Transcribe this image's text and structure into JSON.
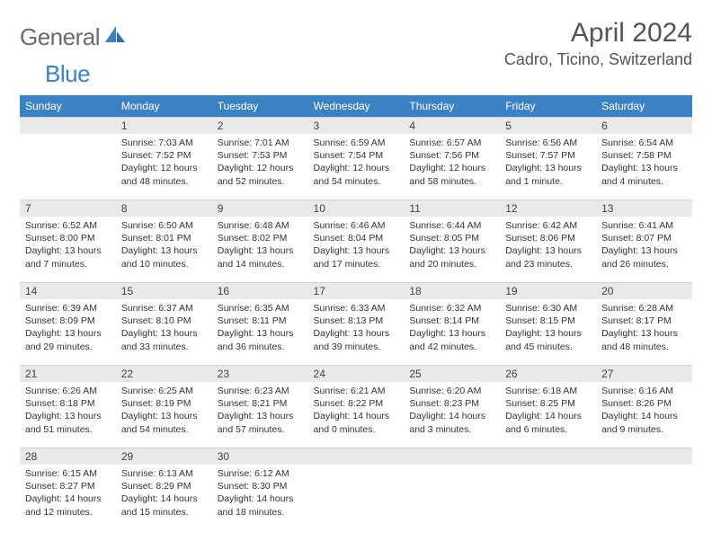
{
  "logo": {
    "part1": "General",
    "part2": "Blue"
  },
  "header": {
    "title": "April 2024",
    "location": "Cadro, Ticino, Switzerland"
  },
  "colors": {
    "accent": "#3b82c4",
    "grayBg": "#e9e9e9",
    "text": "#333333",
    "headerText": "#555555"
  },
  "dayHeaders": [
    "Sunday",
    "Monday",
    "Tuesday",
    "Wednesday",
    "Thursday",
    "Friday",
    "Saturday"
  ],
  "weeks": [
    [
      null,
      {
        "d": "1",
        "sr": "7:03 AM",
        "ss": "7:52 PM",
        "dl": "12 hours and 48 minutes."
      },
      {
        "d": "2",
        "sr": "7:01 AM",
        "ss": "7:53 PM",
        "dl": "12 hours and 52 minutes."
      },
      {
        "d": "3",
        "sr": "6:59 AM",
        "ss": "7:54 PM",
        "dl": "12 hours and 54 minutes."
      },
      {
        "d": "4",
        "sr": "6:57 AM",
        "ss": "7:56 PM",
        "dl": "12 hours and 58 minutes."
      },
      {
        "d": "5",
        "sr": "6:56 AM",
        "ss": "7:57 PM",
        "dl": "13 hours and 1 minute."
      },
      {
        "d": "6",
        "sr": "6:54 AM",
        "ss": "7:58 PM",
        "dl": "13 hours and 4 minutes."
      }
    ],
    [
      {
        "d": "7",
        "sr": "6:52 AM",
        "ss": "8:00 PM",
        "dl": "13 hours and 7 minutes."
      },
      {
        "d": "8",
        "sr": "6:50 AM",
        "ss": "8:01 PM",
        "dl": "13 hours and 10 minutes."
      },
      {
        "d": "9",
        "sr": "6:48 AM",
        "ss": "8:02 PM",
        "dl": "13 hours and 14 minutes."
      },
      {
        "d": "10",
        "sr": "6:46 AM",
        "ss": "8:04 PM",
        "dl": "13 hours and 17 minutes."
      },
      {
        "d": "11",
        "sr": "6:44 AM",
        "ss": "8:05 PM",
        "dl": "13 hours and 20 minutes."
      },
      {
        "d": "12",
        "sr": "6:42 AM",
        "ss": "8:06 PM",
        "dl": "13 hours and 23 minutes."
      },
      {
        "d": "13",
        "sr": "6:41 AM",
        "ss": "8:07 PM",
        "dl": "13 hours and 26 minutes."
      }
    ],
    [
      {
        "d": "14",
        "sr": "6:39 AM",
        "ss": "8:09 PM",
        "dl": "13 hours and 29 minutes."
      },
      {
        "d": "15",
        "sr": "6:37 AM",
        "ss": "8:10 PM",
        "dl": "13 hours and 33 minutes."
      },
      {
        "d": "16",
        "sr": "6:35 AM",
        "ss": "8:11 PM",
        "dl": "13 hours and 36 minutes."
      },
      {
        "d": "17",
        "sr": "6:33 AM",
        "ss": "8:13 PM",
        "dl": "13 hours and 39 minutes."
      },
      {
        "d": "18",
        "sr": "6:32 AM",
        "ss": "8:14 PM",
        "dl": "13 hours and 42 minutes."
      },
      {
        "d": "19",
        "sr": "6:30 AM",
        "ss": "8:15 PM",
        "dl": "13 hours and 45 minutes."
      },
      {
        "d": "20",
        "sr": "6:28 AM",
        "ss": "8:17 PM",
        "dl": "13 hours and 48 minutes."
      }
    ],
    [
      {
        "d": "21",
        "sr": "6:26 AM",
        "ss": "8:18 PM",
        "dl": "13 hours and 51 minutes."
      },
      {
        "d": "22",
        "sr": "6:25 AM",
        "ss": "8:19 PM",
        "dl": "13 hours and 54 minutes."
      },
      {
        "d": "23",
        "sr": "6:23 AM",
        "ss": "8:21 PM",
        "dl": "13 hours and 57 minutes."
      },
      {
        "d": "24",
        "sr": "6:21 AM",
        "ss": "8:22 PM",
        "dl": "14 hours and 0 minutes."
      },
      {
        "d": "25",
        "sr": "6:20 AM",
        "ss": "8:23 PM",
        "dl": "14 hours and 3 minutes."
      },
      {
        "d": "26",
        "sr": "6:18 AM",
        "ss": "8:25 PM",
        "dl": "14 hours and 6 minutes."
      },
      {
        "d": "27",
        "sr": "6:16 AM",
        "ss": "8:26 PM",
        "dl": "14 hours and 9 minutes."
      }
    ],
    [
      {
        "d": "28",
        "sr": "6:15 AM",
        "ss": "8:27 PM",
        "dl": "14 hours and 12 minutes."
      },
      {
        "d": "29",
        "sr": "6:13 AM",
        "ss": "8:29 PM",
        "dl": "14 hours and 15 minutes."
      },
      {
        "d": "30",
        "sr": "6:12 AM",
        "ss": "8:30 PM",
        "dl": "14 hours and 18 minutes."
      },
      null,
      null,
      null,
      null
    ]
  ],
  "labels": {
    "sunrise": "Sunrise:",
    "sunset": "Sunset:",
    "daylight": "Daylight:"
  }
}
